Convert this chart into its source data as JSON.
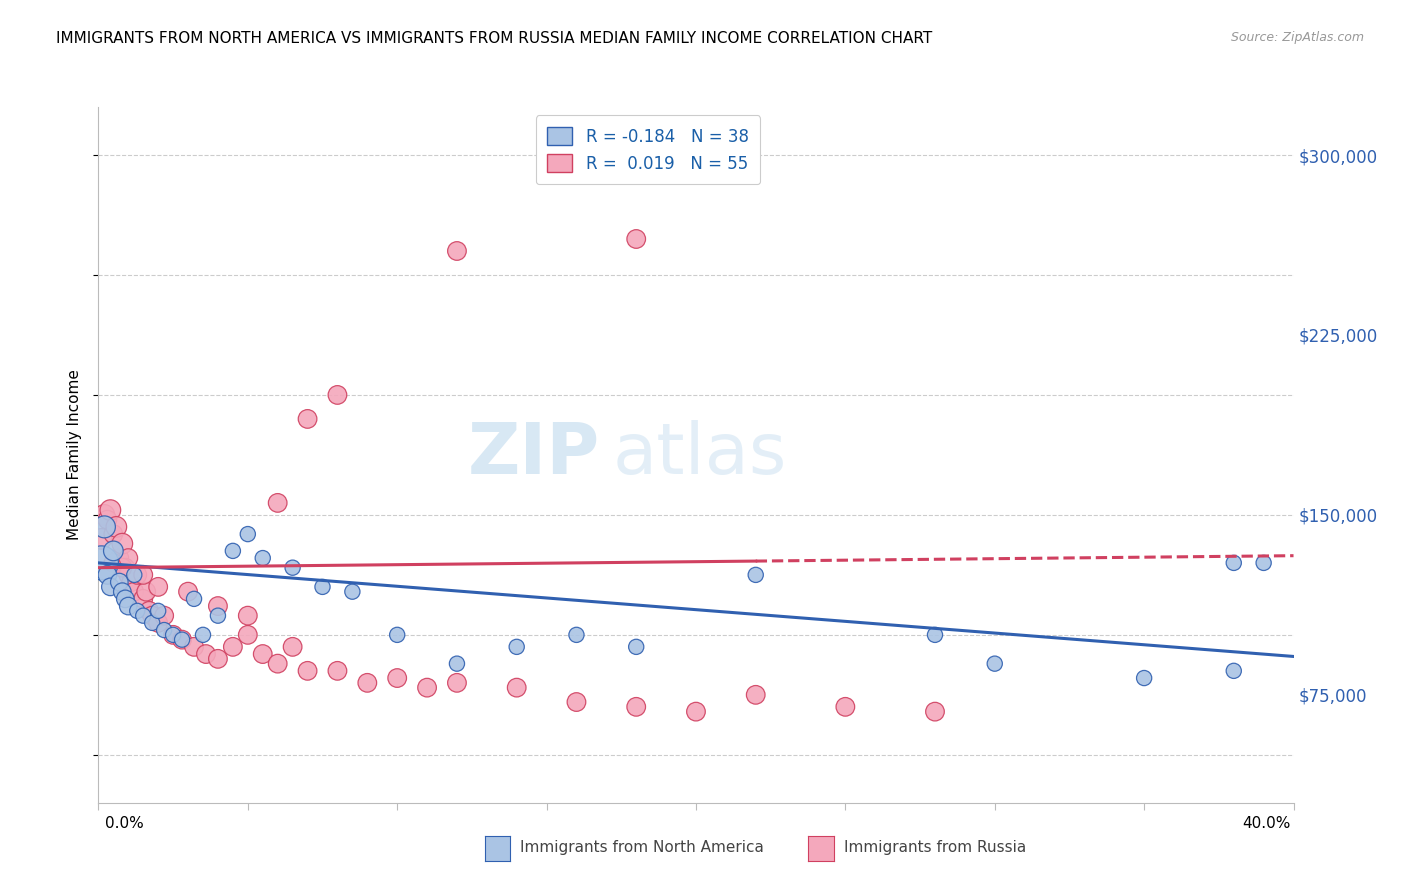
{
  "title": "IMMIGRANTS FROM NORTH AMERICA VS IMMIGRANTS FROM RUSSIA MEDIAN FAMILY INCOME CORRELATION CHART",
  "source": "Source: ZipAtlas.com",
  "ylabel": "Median Family Income",
  "y_ticks": [
    75000,
    150000,
    225000,
    300000
  ],
  "y_tick_labels": [
    "$75,000",
    "$150,000",
    "$225,000",
    "$300,000"
  ],
  "x_min": 0.0,
  "x_max": 0.4,
  "y_min": 30000,
  "y_max": 320000,
  "legend_r1": "R = -0.184",
  "legend_n1": "N = 38",
  "legend_r2": "R =  0.019",
  "legend_n2": "N = 55",
  "color_blue": "#aac4e4",
  "color_pink": "#f4a8bc",
  "line_blue": "#3060b0",
  "line_pink": "#d04060",
  "watermark_zip": "ZIP",
  "watermark_atlas": "atlas",
  "na_trend_y0": 130000,
  "na_trend_y1": 91000,
  "ru_trend_y0": 128000,
  "ru_trend_y1": 133000,
  "ru_trend_solid_end": 0.22,
  "north_america_x": [
    0.001,
    0.002,
    0.003,
    0.004,
    0.005,
    0.007,
    0.008,
    0.009,
    0.01,
    0.012,
    0.013,
    0.015,
    0.018,
    0.02,
    0.022,
    0.025,
    0.028,
    0.032,
    0.035,
    0.04,
    0.045,
    0.05,
    0.055,
    0.065,
    0.075,
    0.085,
    0.1,
    0.12,
    0.14,
    0.16,
    0.18,
    0.22,
    0.28,
    0.3,
    0.35,
    0.38,
    0.38,
    0.39
  ],
  "north_america_y": [
    130000,
    145000,
    125000,
    120000,
    135000,
    122000,
    118000,
    115000,
    112000,
    125000,
    110000,
    108000,
    105000,
    110000,
    102000,
    100000,
    98000,
    115000,
    100000,
    108000,
    135000,
    142000,
    132000,
    128000,
    120000,
    118000,
    100000,
    88000,
    95000,
    100000,
    95000,
    125000,
    100000,
    88000,
    82000,
    85000,
    130000,
    130000
  ],
  "north_america_sizes": [
    600,
    250,
    180,
    160,
    200,
    160,
    160,
    160,
    160,
    120,
    120,
    120,
    120,
    120,
    120,
    120,
    120,
    120,
    120,
    120,
    120,
    120,
    120,
    120,
    120,
    120,
    120,
    120,
    120,
    120,
    120,
    120,
    120,
    120,
    120,
    120,
    120,
    120
  ],
  "russia_x": [
    0.001,
    0.002,
    0.003,
    0.004,
    0.005,
    0.006,
    0.007,
    0.008,
    0.009,
    0.01,
    0.011,
    0.012,
    0.013,
    0.015,
    0.016,
    0.017,
    0.018,
    0.02,
    0.022,
    0.025,
    0.028,
    0.032,
    0.036,
    0.04,
    0.045,
    0.05,
    0.055,
    0.06,
    0.065,
    0.07,
    0.08,
    0.09,
    0.1,
    0.11,
    0.12,
    0.14,
    0.16,
    0.18,
    0.2,
    0.22,
    0.25,
    0.28,
    0.005,
    0.008,
    0.01,
    0.015,
    0.02,
    0.03,
    0.04,
    0.05,
    0.06,
    0.07,
    0.08,
    0.12,
    0.18
  ],
  "russia_y": [
    140000,
    150000,
    148000,
    152000,
    142000,
    145000,
    132000,
    138000,
    128000,
    125000,
    122000,
    118000,
    125000,
    115000,
    118000,
    110000,
    108000,
    105000,
    108000,
    100000,
    98000,
    95000,
    92000,
    90000,
    95000,
    100000,
    92000,
    88000,
    95000,
    85000,
    85000,
    80000,
    82000,
    78000,
    80000,
    78000,
    72000,
    70000,
    68000,
    75000,
    70000,
    68000,
    130000,
    128000,
    132000,
    125000,
    120000,
    118000,
    112000,
    108000,
    155000,
    190000,
    200000,
    260000,
    265000
  ],
  "russia_sizes": [
    220,
    220,
    180,
    220,
    180,
    220,
    180,
    220,
    180,
    180,
    180,
    180,
    180,
    180,
    180,
    180,
    180,
    180,
    180,
    180,
    180,
    180,
    180,
    180,
    180,
    180,
    180,
    180,
    180,
    180,
    180,
    180,
    180,
    180,
    180,
    180,
    180,
    180,
    180,
    180,
    180,
    180,
    180,
    180,
    180,
    180,
    180,
    180,
    180,
    180,
    180,
    180,
    180,
    180,
    180
  ]
}
